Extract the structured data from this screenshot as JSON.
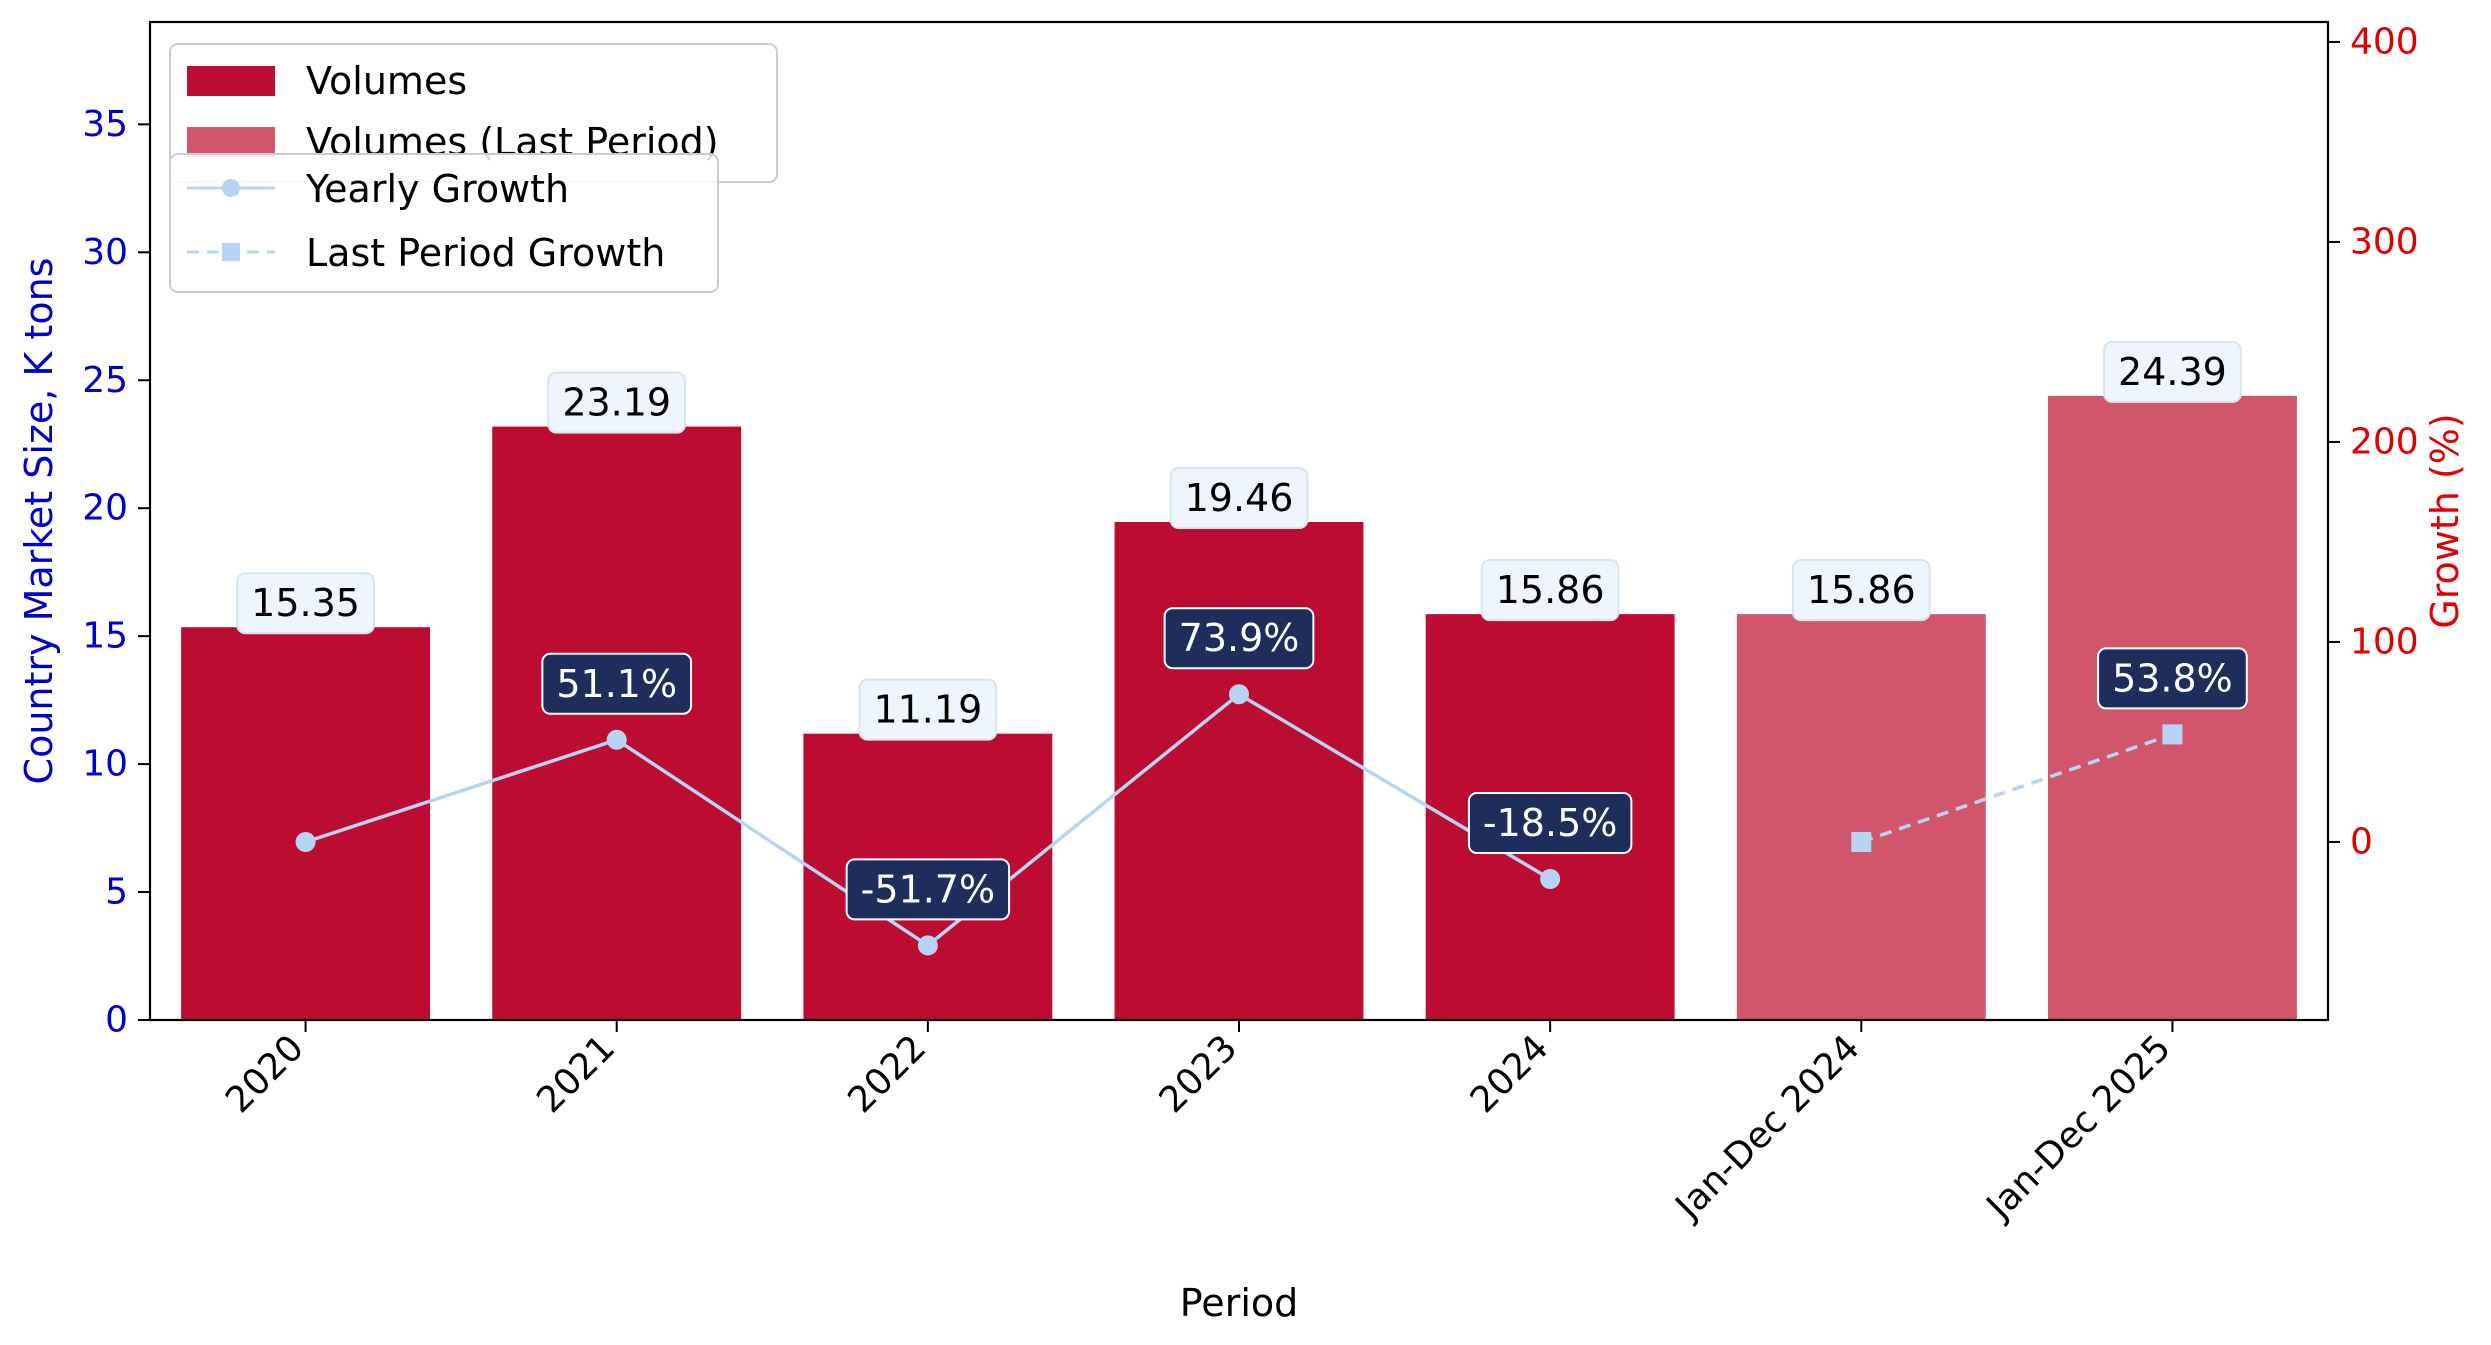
{
  "chart_data": {
    "type": "bar",
    "categories": [
      "2020",
      "2021",
      "2022",
      "2023",
      "2024",
      "Jan-Dec 2024",
      "Jan-Dec 2025"
    ],
    "series": [
      {
        "name": "Volumes",
        "axis": "left",
        "color": "#bc0c32",
        "values": [
          15.35,
          23.19,
          11.19,
          19.46,
          15.86,
          null,
          null
        ]
      },
      {
        "name": "Volumes (Last Period)",
        "axis": "left",
        "color": "#d1566c",
        "values": [
          null,
          null,
          null,
          null,
          null,
          15.86,
          24.39
        ]
      },
      {
        "name": "Yearly Growth",
        "type": "line",
        "style": "solid",
        "marker": "circle",
        "axis": "right",
        "color": "#b7d4f5",
        "values": [
          0,
          51.1,
          -51.7,
          73.9,
          -18.5,
          null,
          null
        ]
      },
      {
        "name": "Last Period Growth",
        "type": "line",
        "style": "dashed",
        "marker": "square",
        "axis": "right",
        "color": "#b7d4f5",
        "values": [
          null,
          null,
          null,
          null,
          null,
          0,
          53.8
        ]
      }
    ],
    "bar_labels": [
      "15.35",
      "23.19",
      "11.19",
      "19.46",
      "15.86",
      "15.86",
      "24.39"
    ],
    "growth_labels": [
      "",
      "51.1%",
      "-51.7%",
      "73.9%",
      "-18.5%",
      "",
      "53.8%"
    ],
    "xlabel": "Period",
    "ylabel": "Country Market Size, K tons",
    "y2label": "Growth (%)",
    "ylim": [
      0,
      39
    ],
    "y2lim": [
      -89,
      410
    ],
    "yticks": [
      "0",
      "5",
      "10",
      "15",
      "20",
      "25",
      "30",
      "35"
    ],
    "y2ticks": [
      "0",
      "100",
      "200",
      "300",
      "400"
    ],
    "left_axis_color": "#0000cc",
    "right_axis_color": "#e00000",
    "label_box_color": "#eef5fc",
    "growth_box_color": "#1f2d5c",
    "grid": false,
    "legend_position": "top-left"
  }
}
